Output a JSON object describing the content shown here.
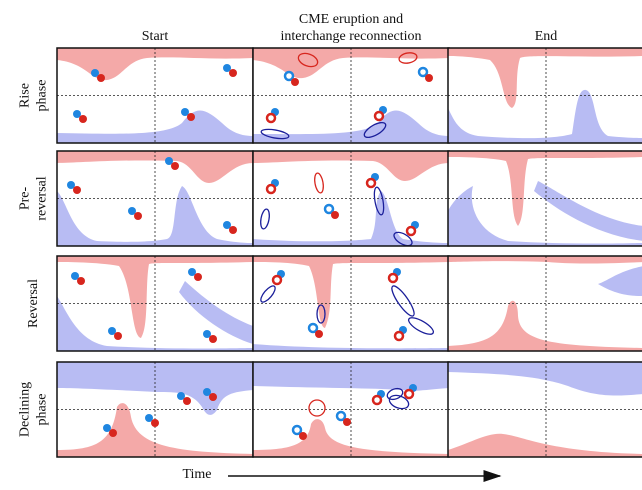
{
  "columns": [
    {
      "lines": [
        "Start"
      ]
    },
    {
      "lines": [
        "CME eruption and",
        "interchange reconnection"
      ]
    },
    {
      "lines": [
        "End"
      ]
    }
  ],
  "rows": [
    {
      "lines": [
        "Rise",
        "phase"
      ]
    },
    {
      "lines": [
        "Pre-",
        "reversal"
      ]
    },
    {
      "lines": [
        "Reversal"
      ]
    },
    {
      "lines": [
        "Declining",
        "phase"
      ]
    }
  ],
  "axis": {
    "label": "Time"
  }
}
